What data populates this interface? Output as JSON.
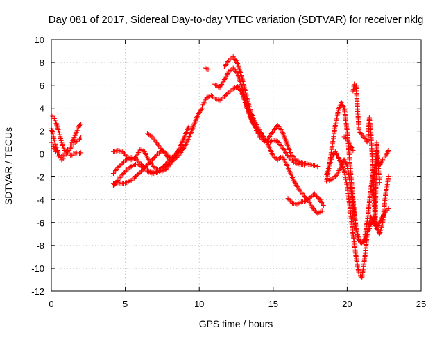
{
  "chart_data": {
    "type": "scatter",
    "title": "Day 081 of 2017, Sidereal Day-to-day VTEC variation (SDTVAR) for receiver nklg",
    "xlabel": "GPS time / hours",
    "ylabel": "SDTVAR / TECUs",
    "xlim": [
      0,
      25
    ],
    "ylim": [
      -12,
      10
    ],
    "xticks": [
      0,
      5,
      10,
      15,
      20,
      25
    ],
    "yticks": [
      -12,
      -10,
      -8,
      -6,
      -4,
      -2,
      0,
      2,
      4,
      6,
      8,
      10
    ],
    "grid": true,
    "legend": "none",
    "marker": "plus",
    "color": "#ff0000",
    "series": [
      {
        "x": [
          0.0,
          0.1,
          0.2,
          0.3,
          0.4,
          0.5,
          0.6,
          0.7,
          0.8,
          0.9,
          1.0,
          1.1,
          1.2,
          1.3,
          1.4,
          1.5,
          1.6,
          1.7,
          1.8,
          1.9,
          2.0
        ],
        "y": [
          3.4,
          3.3,
          3.1,
          2.8,
          2.4,
          2.0,
          1.5,
          1.0,
          0.6,
          0.3,
          0.2,
          0.4,
          0.6,
          0.8,
          1.0,
          1.3,
          1.6,
          1.9,
          2.2,
          2.5,
          2.6
        ]
      },
      {
        "x": [
          0.0,
          0.1,
          0.2,
          0.3,
          0.4,
          0.5,
          0.6,
          0.7,
          0.8,
          0.9,
          1.0,
          1.1,
          1.2,
          1.3,
          1.4,
          1.5,
          1.6,
          1.7,
          1.8,
          1.9,
          2.0
        ],
        "y": [
          2.2,
          1.8,
          1.2,
          0.7,
          0.3,
          0.0,
          -0.3,
          -0.5,
          -0.4,
          -0.2,
          0.0,
          0.2,
          0.3,
          0.5,
          0.6,
          0.8,
          1.0,
          1.1,
          1.2,
          1.3,
          1.4
        ]
      },
      {
        "x": [
          0.0,
          0.1,
          0.2,
          0.3,
          0.4,
          0.5,
          0.6,
          0.7,
          0.8,
          0.9,
          1.0,
          1.1,
          1.2,
          1.3,
          1.4,
          1.5,
          1.6,
          1.7,
          1.8,
          1.9,
          2.0
        ],
        "y": [
          1.0,
          0.8,
          0.5,
          0.2,
          0.0,
          -0.2,
          -0.3,
          -0.2,
          -0.1,
          0.0,
          0.1,
          0.1,
          0.0,
          -0.1,
          -0.1,
          0.0,
          0.0,
          0.1,
          0.0,
          0.0,
          0.1
        ]
      },
      {
        "x": [
          4.2,
          4.5,
          4.8,
          5.1,
          5.4,
          5.7,
          6.0,
          6.3,
          6.6,
          6.9,
          7.2,
          7.5,
          7.8,
          8.1,
          8.4,
          8.7,
          9.0,
          9.3
        ],
        "y": [
          0.2,
          0.3,
          0.2,
          -0.2,
          -0.5,
          -0.3,
          0.4,
          0.2,
          -0.6,
          -1.1,
          -1.4,
          -1.5,
          -1.3,
          -0.8,
          -0.1,
          0.6,
          1.5,
          2.4
        ]
      },
      {
        "x": [
          4.2,
          4.5,
          4.8,
          5.1,
          5.4,
          5.7,
          6.0,
          6.3,
          6.6,
          6.9,
          7.2,
          7.5,
          7.8,
          8.1,
          8.4,
          8.7,
          9.0,
          9.3,
          9.6,
          9.9,
          10.2
        ],
        "y": [
          -2.8,
          -2.3,
          -1.8,
          -1.4,
          -1.1,
          -0.9,
          -1.0,
          -1.3,
          -1.6,
          -1.7,
          -1.6,
          -1.3,
          -1.0,
          -0.7,
          -0.4,
          0.0,
          0.6,
          1.4,
          2.4,
          3.4,
          4.0
        ]
      },
      {
        "x": [
          4.2,
          4.5,
          4.8,
          5.1,
          5.4,
          5.7,
          6.0,
          6.3,
          6.6,
          6.9,
          7.2,
          7.5,
          7.8,
          8.1,
          8.4,
          8.7,
          9.0
        ],
        "y": [
          -1.7,
          -1.2,
          -0.8,
          -0.5,
          -0.3,
          -0.4,
          -0.8,
          -1.2,
          -1.5,
          -1.6,
          -1.5,
          -1.2,
          -0.8,
          -0.4,
          0.0,
          0.3,
          0.6
        ]
      },
      {
        "x": [
          4.2,
          4.5,
          4.8,
          5.1,
          5.4,
          5.7,
          6.0,
          6.3,
          6.6,
          6.9,
          7.2,
          7.5,
          7.8,
          8.1
        ],
        "y": [
          -2.6,
          -2.5,
          -2.6,
          -2.5,
          -2.3,
          -2.0,
          -1.6,
          -1.2,
          -0.8,
          -0.4,
          0.0,
          0.3,
          0.0,
          -0.4
        ]
      },
      {
        "x": [
          6.5,
          6.8,
          7.1,
          7.4,
          7.7,
          8.0
        ],
        "y": [
          1.8,
          1.5,
          1.0,
          0.5,
          0.0,
          -0.5
        ]
      },
      {
        "x": [
          10.2,
          10.5,
          10.8,
          11.1,
          11.4,
          11.7,
          12.0,
          12.3,
          12.6,
          12.9,
          13.2,
          13.5,
          13.8,
          14.1,
          14.4,
          14.7,
          15.0,
          15.3,
          15.6,
          15.9,
          16.2,
          16.5,
          16.8,
          17.1
        ],
        "y": [
          4.2,
          4.9,
          5.1,
          4.8,
          4.7,
          5.0,
          5.4,
          5.7,
          5.9,
          5.3,
          4.1,
          3.0,
          2.4,
          1.8,
          1.3,
          1.0,
          1.2,
          1.1,
          0.6,
          0.0,
          -0.5,
          -0.8,
          -0.9,
          -1.0
        ]
      },
      {
        "x": [
          11.0,
          11.4,
          11.7,
          12.0,
          12.3,
          12.6,
          12.9,
          13.2,
          13.5,
          13.8,
          14.1,
          14.4,
          14.7,
          15.0,
          15.3,
          15.6,
          15.9,
          16.2,
          16.5,
          16.8,
          17.1,
          17.4,
          17.7,
          18.0
        ],
        "y": [
          6.1,
          5.8,
          6.5,
          7.2,
          7.5,
          7.0,
          5.8,
          4.3,
          3.2,
          2.2,
          1.5,
          1.1,
          1.4,
          2.0,
          2.5,
          2.0,
          1.0,
          0.0,
          -0.5,
          -0.7,
          -0.8,
          -0.9,
          -1.0,
          -1.1
        ]
      },
      {
        "x": [
          11.7,
          12.0,
          12.3,
          12.6,
          12.9,
          13.2,
          13.5,
          13.8,
          14.1,
          14.4,
          14.7,
          15.0,
          15.3,
          15.6,
          15.9,
          16.2,
          16.5,
          16.8,
          17.1,
          17.4,
          17.7,
          18.0,
          18.3
        ],
        "y": [
          7.6,
          8.2,
          8.5,
          7.9,
          6.6,
          5.0,
          3.6,
          2.7,
          2.0,
          1.4,
          0.7,
          -0.2,
          -0.5,
          -0.2,
          -0.9,
          -1.8,
          -2.6,
          -3.2,
          -3.7,
          -4.1,
          -4.8,
          -5.2,
          -5.0
        ]
      },
      {
        "x": [
          10.4,
          10.6
        ],
        "y": [
          7.5,
          7.4
        ]
      },
      {
        "x": [
          16.0,
          16.3,
          16.6,
          16.9,
          17.2,
          17.5,
          17.8,
          18.1,
          18.4
        ],
        "y": [
          -3.9,
          -4.3,
          -4.4,
          -4.2,
          -4.1,
          -3.8,
          -3.5,
          -3.9,
          -4.5
        ]
      },
      {
        "x": [
          18.6,
          18.8,
          19.0,
          19.2,
          19.4,
          19.6,
          19.8,
          20.0,
          20.2,
          20.4,
          20.6,
          20.8,
          21.0,
          21.2,
          21.4,
          21.6,
          21.8,
          22.0,
          22.2,
          22.4,
          22.6,
          22.8
        ],
        "y": [
          -2.4,
          -1.0,
          0.8,
          2.5,
          3.8,
          4.5,
          4.0,
          2.0,
          -1.0,
          -4.0,
          -6.5,
          -7.6,
          -7.8,
          -7.2,
          -5.5,
          -3.0,
          -1.5,
          -0.5,
          -1.0,
          -0.5,
          -0.2,
          0.3
        ]
      },
      {
        "x": [
          18.6,
          18.8,
          19.0,
          19.2,
          19.4,
          19.6,
          19.8,
          20.0,
          20.2,
          20.4,
          20.6,
          20.8,
          21.0,
          21.2,
          21.4,
          21.6,
          21.8,
          22.0,
          22.2,
          22.4,
          22.6,
          22.8
        ],
        "y": [
          -1.8,
          -1.0,
          -0.2,
          0.2,
          -0.3,
          -0.8,
          -1.5,
          -2.8,
          -4.8,
          -7.0,
          -9.0,
          -10.5,
          -10.8,
          -9.0,
          -6.5,
          -5.5,
          -6.0,
          -6.5,
          -6.0,
          -5.5,
          -5.0,
          -4.8
        ]
      },
      {
        "x": [
          18.8,
          19.0,
          19.2,
          19.4,
          19.6,
          19.8,
          20.0,
          20.2,
          20.4,
          20.6,
          20.8,
          21.0,
          21.2,
          21.4,
          21.6,
          21.8,
          22.0,
          22.2,
          22.4,
          22.6,
          22.8
        ],
        "y": [
          -2.3,
          -2.2,
          -2.0,
          -1.6,
          -1.0,
          -0.5,
          -1.0,
          -2.5,
          -4.5,
          -6.5,
          -7.5,
          -7.8,
          -7.6,
          -6.8,
          -6.2,
          -5.5,
          -6.5,
          -7.0,
          -6.0,
          -3.5,
          -2.0
        ]
      },
      {
        "x": [
          20.4,
          20.5,
          20.6,
          20.7,
          20.8,
          21.4,
          21.5,
          21.6,
          21.7,
          21.8,
          21.9,
          22.0,
          22.1,
          22.2
        ],
        "y": [
          5.5,
          6.2,
          6.0,
          4.0,
          2.0,
          1.0,
          3.2,
          2.0,
          -0.5,
          -3.5,
          -6.0,
          1.0,
          -1.0,
          -2.5
        ]
      },
      {
        "x": [
          19.8,
          20.0,
          20.2,
          20.4
        ],
        "y": [
          1.5,
          1.2,
          0.8,
          0.3
        ]
      }
    ]
  }
}
